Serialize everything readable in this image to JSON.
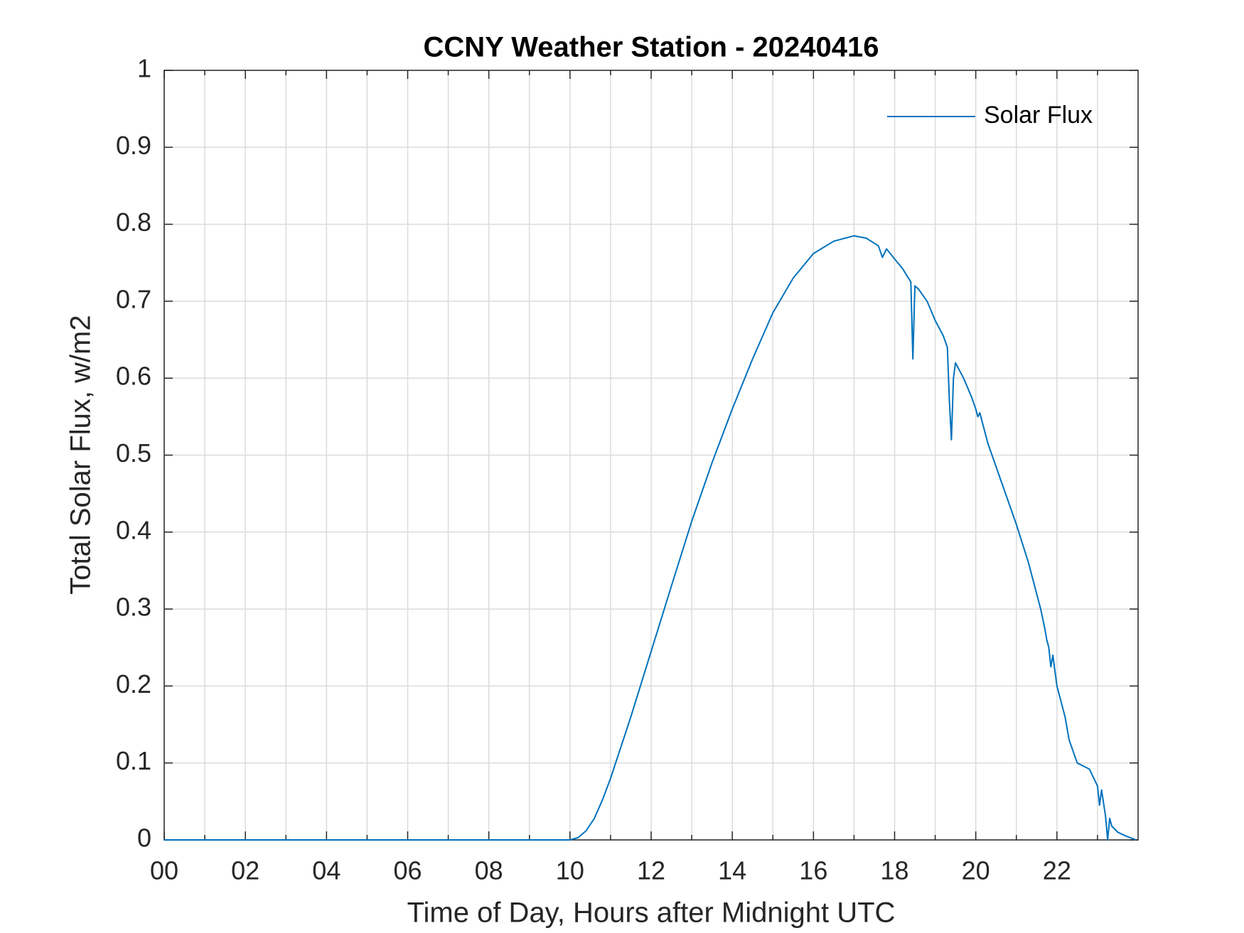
{
  "chart_data": {
    "type": "line",
    "title": "CCNY Weather Station - 20240416",
    "xlabel": "Time of Day, Hours after Midnight UTC",
    "ylabel": "Total Solar Flux, w/m2",
    "x": [
      0,
      2,
      4,
      6,
      8,
      10,
      10.2,
      10.4,
      10.6,
      10.8,
      11,
      11.5,
      12,
      12.5,
      13,
      13.5,
      14,
      14.5,
      15,
      15.5,
      16,
      16.5,
      17,
      17.3,
      17.6,
      17.7,
      17.8,
      18,
      18.2,
      18.4,
      18.45,
      18.5,
      18.6,
      18.8,
      19,
      19.2,
      19.3,
      19.35,
      19.4,
      19.45,
      19.5,
      19.7,
      19.9,
      20,
      20.05,
      20.1,
      20.3,
      20.6,
      21,
      21.3,
      21.6,
      21.7,
      21.75,
      21.8,
      21.85,
      21.9,
      22,
      22.2,
      22.3,
      22.5,
      22.8,
      23,
      23.05,
      23.1,
      23.2,
      23.25,
      23.3,
      23.35,
      23.5,
      23.7,
      23.95
    ],
    "series": [
      {
        "name": "Solar Flux",
        "color": "#0072bd",
        "values": [
          0,
          0,
          0,
          0,
          0,
          0,
          0.003,
          0.012,
          0.028,
          0.052,
          0.08,
          0.16,
          0.245,
          0.33,
          0.414,
          0.49,
          0.56,
          0.625,
          0.685,
          0.73,
          0.762,
          0.778,
          0.785,
          0.782,
          0.772,
          0.757,
          0.768,
          0.755,
          0.742,
          0.725,
          0.625,
          0.72,
          0.715,
          0.7,
          0.675,
          0.655,
          0.64,
          0.57,
          0.52,
          0.6,
          0.62,
          0.6,
          0.575,
          0.56,
          0.55,
          0.555,
          0.515,
          0.47,
          0.41,
          0.36,
          0.3,
          0.275,
          0.26,
          0.25,
          0.225,
          0.24,
          0.2,
          0.16,
          0.13,
          0.1,
          0.092,
          0.07,
          0.045,
          0.065,
          0.03,
          0,
          0.028,
          0.018,
          0.01,
          0.005,
          0
        ]
      }
    ],
    "xlim": [
      0,
      24
    ],
    "xticks": [
      {
        "value": 0,
        "label": "00"
      },
      {
        "value": 2,
        "label": "02"
      },
      {
        "value": 4,
        "label": "04"
      },
      {
        "value": 6,
        "label": "06"
      },
      {
        "value": 8,
        "label": "08"
      },
      10,
      12,
      14,
      16,
      18,
      20,
      22
    ],
    "x_minor_ticks": [
      1,
      3,
      5,
      7,
      9,
      11,
      13,
      15,
      17,
      19,
      21,
      23
    ],
    "ylim": [
      0,
      1
    ],
    "yticks": [
      0,
      0.1,
      0.2,
      0.3,
      0.4,
      0.5,
      0.6,
      0.7,
      0.8,
      0.9,
      1
    ],
    "grid": true,
    "legend": "upper right"
  }
}
